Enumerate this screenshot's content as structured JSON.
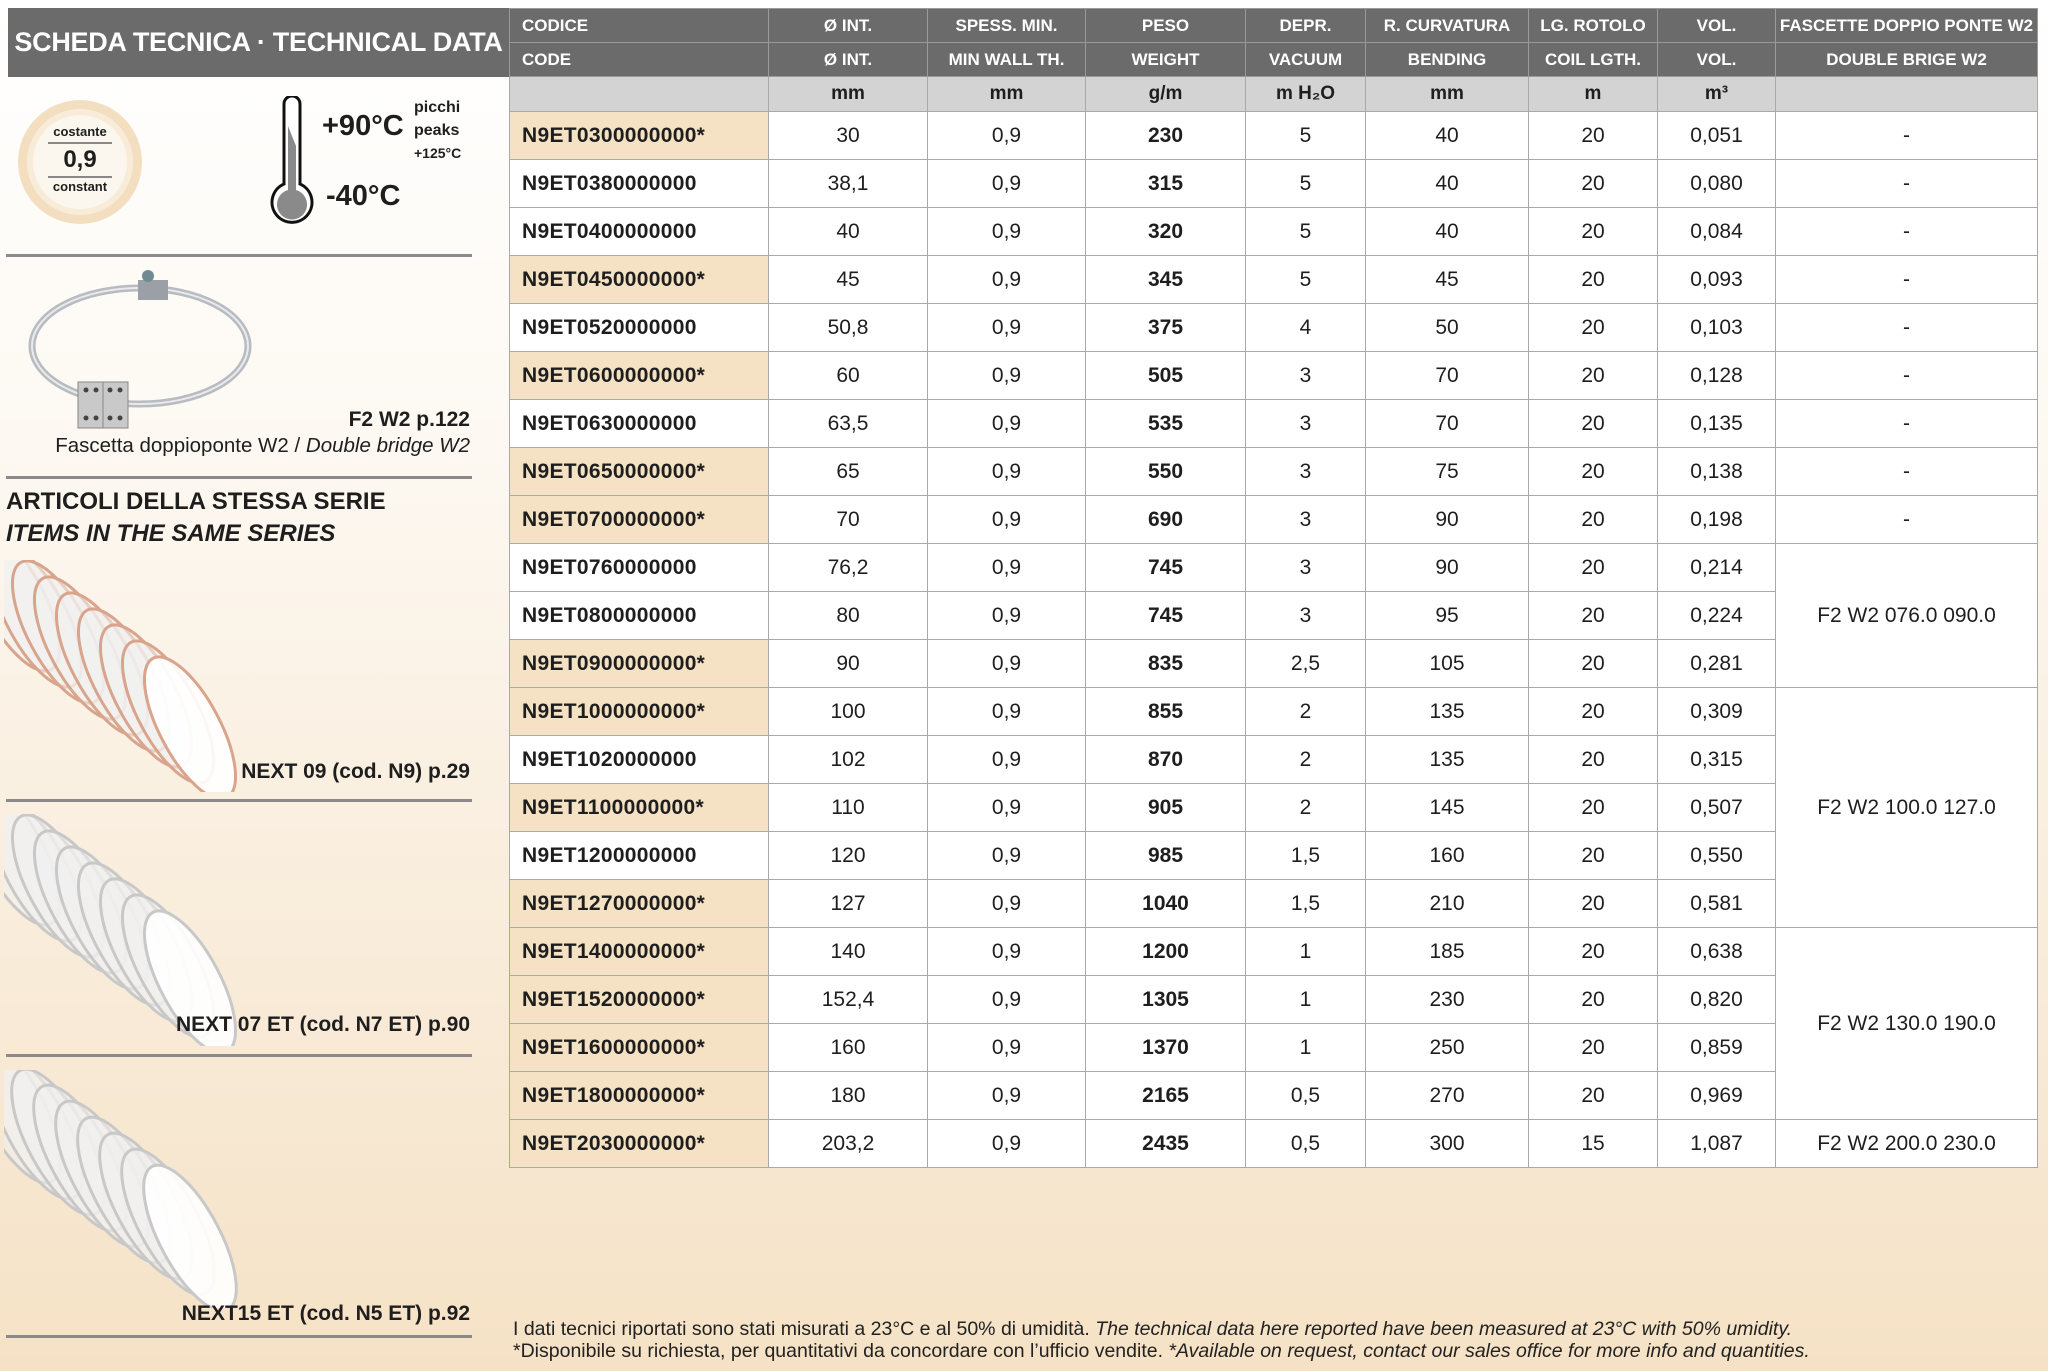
{
  "sidebar": {
    "title": "SCHEDA TECNICA · TECHNICAL DATA",
    "thickness_badge": {
      "top": "costante",
      "value": "0,9",
      "bottom": "constant"
    },
    "temperature": {
      "max": "+90°C",
      "min": "-40°C",
      "peaks_it": "picchi",
      "peaks_en": "peaks",
      "peaks_value": "+125°C"
    },
    "accessory": {
      "code": "F2 W2 p.122",
      "name_it": "Fascetta doppioponte W2",
      "separator": " / ",
      "name_en": "Double bridge W2"
    },
    "series_heading_it": "ARTICOLI DELLA STESSA SERIE",
    "series_heading_en": "ITEMS IN THE SAME SERIES",
    "series_items": [
      {
        "label": "NEXT 09 (cod. N9) p.29",
        "spiral_color": "#d9a48c"
      },
      {
        "label": "NEXT 07 ET (cod. N7 ET) p.90",
        "spiral_color": "#c8c8c8"
      },
      {
        "label": "NEXT15 ET (cod. N5 ET) p.92",
        "spiral_color": "#c8c8c8"
      }
    ]
  },
  "table": {
    "headers_it": [
      "CODICE",
      "Ø INT.",
      "SPESS. MIN.",
      "PESO",
      "DEPR.",
      "R. CURVATURA",
      "LG. ROTOLO",
      "VOL.",
      "FASCETTE DOPPIO PONTE W2"
    ],
    "headers_en": [
      "CODE",
      "Ø INT.",
      "MIN WALL TH.",
      "WEIGHT",
      "VACUUM",
      "BENDING",
      "COIL LGTH.",
      "VOL.",
      "DOUBLE BRIGE W2"
    ],
    "units": [
      "",
      "mm",
      "mm",
      "g/m",
      "m H₂O",
      "mm",
      "m",
      "m³",
      ""
    ],
    "rows": [
      {
        "code": "N9ET0300000000*",
        "dia": "30",
        "wall": "0,9",
        "weight": "230",
        "vacuum": "5",
        "bending": "40",
        "coil": "20",
        "vol": "0,051",
        "on_request": true
      },
      {
        "code": "N9ET0380000000",
        "dia": "38,1",
        "wall": "0,9",
        "weight": "315",
        "vacuum": "5",
        "bending": "40",
        "coil": "20",
        "vol": "0,080",
        "on_request": false
      },
      {
        "code": "N9ET0400000000",
        "dia": "40",
        "wall": "0,9",
        "weight": "320",
        "vacuum": "5",
        "bending": "40",
        "coil": "20",
        "vol": "0,084",
        "on_request": false
      },
      {
        "code": "N9ET0450000000*",
        "dia": "45",
        "wall": "0,9",
        "weight": "345",
        "vacuum": "5",
        "bending": "45",
        "coil": "20",
        "vol": "0,093",
        "on_request": true
      },
      {
        "code": "N9ET0520000000",
        "dia": "50,8",
        "wall": "0,9",
        "weight": "375",
        "vacuum": "4",
        "bending": "50",
        "coil": "20",
        "vol": "0,103",
        "on_request": false
      },
      {
        "code": "N9ET0600000000*",
        "dia": "60",
        "wall": "0,9",
        "weight": "505",
        "vacuum": "3",
        "bending": "70",
        "coil": "20",
        "vol": "0,128",
        "on_request": true
      },
      {
        "code": "N9ET0630000000",
        "dia": "63,5",
        "wall": "0,9",
        "weight": "535",
        "vacuum": "3",
        "bending": "70",
        "coil": "20",
        "vol": "0,135",
        "on_request": false
      },
      {
        "code": "N9ET0650000000*",
        "dia": "65",
        "wall": "0,9",
        "weight": "550",
        "vacuum": "3",
        "bending": "75",
        "coil": "20",
        "vol": "0,138",
        "on_request": true
      },
      {
        "code": "N9ET0700000000*",
        "dia": "70",
        "wall": "0,9",
        "weight": "690",
        "vacuum": "3",
        "bending": "90",
        "coil": "20",
        "vol": "0,198",
        "on_request": true
      },
      {
        "code": "N9ET0760000000",
        "dia": "76,2",
        "wall": "0,9",
        "weight": "745",
        "vacuum": "3",
        "bending": "90",
        "coil": "20",
        "vol": "0,214",
        "on_request": false
      },
      {
        "code": "N9ET0800000000",
        "dia": "80",
        "wall": "0,9",
        "weight": "745",
        "vacuum": "3",
        "bending": "95",
        "coil": "20",
        "vol": "0,224",
        "on_request": false
      },
      {
        "code": "N9ET0900000000*",
        "dia": "90",
        "wall": "0,9",
        "weight": "835",
        "vacuum": "2,5",
        "bending": "105",
        "coil": "20",
        "vol": "0,281",
        "on_request": true
      },
      {
        "code": "N9ET1000000000*",
        "dia": "100",
        "wall": "0,9",
        "weight": "855",
        "vacuum": "2",
        "bending": "135",
        "coil": "20",
        "vol": "0,309",
        "on_request": true
      },
      {
        "code": "N9ET1020000000",
        "dia": "102",
        "wall": "0,9",
        "weight": "870",
        "vacuum": "2",
        "bending": "135",
        "coil": "20",
        "vol": "0,315",
        "on_request": false
      },
      {
        "code": "N9ET1100000000*",
        "dia": "110",
        "wall": "0,9",
        "weight": "905",
        "vacuum": "2",
        "bending": "145",
        "coil": "20",
        "vol": "0,507",
        "on_request": true
      },
      {
        "code": "N9ET1200000000",
        "dia": "120",
        "wall": "0,9",
        "weight": "985",
        "vacuum": "1,5",
        "bending": "160",
        "coil": "20",
        "vol": "0,550",
        "on_request": false
      },
      {
        "code": "N9ET1270000000*",
        "dia": "127",
        "wall": "0,9",
        "weight": "1040",
        "vacuum": "1,5",
        "bending": "210",
        "coil": "20",
        "vol": "0,581",
        "on_request": true
      },
      {
        "code": "N9ET1400000000*",
        "dia": "140",
        "wall": "0,9",
        "weight": "1200",
        "vacuum": "1",
        "bending": "185",
        "coil": "20",
        "vol": "0,638",
        "on_request": true
      },
      {
        "code": "N9ET1520000000*",
        "dia": "152,4",
        "wall": "0,9",
        "weight": "1305",
        "vacuum": "1",
        "bending": "230",
        "coil": "20",
        "vol": "0,820",
        "on_request": true
      },
      {
        "code": "N9ET1600000000*",
        "dia": "160",
        "wall": "0,9",
        "weight": "1370",
        "vacuum": "1",
        "bending": "250",
        "coil": "20",
        "vol": "0,859",
        "on_request": true
      },
      {
        "code": "N9ET1800000000*",
        "dia": "180",
        "wall": "0,9",
        "weight": "2165",
        "vacuum": "0,5",
        "bending": "270",
        "coil": "20",
        "vol": "0,969",
        "on_request": true
      },
      {
        "code": "N9ET2030000000*",
        "dia": "203,2",
        "wall": "0,9",
        "weight": "2435",
        "vacuum": "0,5",
        "bending": "300",
        "coil": "15",
        "vol": "1,087",
        "on_request": true
      }
    ],
    "clamp_groups": [
      {
        "label": "-",
        "rows": 1
      },
      {
        "label": "-",
        "rows": 1
      },
      {
        "label": "-",
        "rows": 1
      },
      {
        "label": "-",
        "rows": 1
      },
      {
        "label": "-",
        "rows": 1
      },
      {
        "label": "-",
        "rows": 1
      },
      {
        "label": "-",
        "rows": 1
      },
      {
        "label": "-",
        "rows": 1
      },
      {
        "label": "-",
        "rows": 1
      },
      {
        "label": "F2 W2 076.0 090.0",
        "rows": 3
      },
      {
        "label": "F2 W2 100.0 127.0",
        "rows": 5
      },
      {
        "label": "F2 W2 130.0 190.0",
        "rows": 4
      },
      {
        "label": "F2 W2 200.0 230.0",
        "rows": 1
      }
    ],
    "highlight_color": "#f5e1c3",
    "header_color": "#6b6b6b"
  },
  "footnote": {
    "line1_it": "I dati tecnici riportati sono stati misurati a 23°C e al 50% di umidità. ",
    "line1_en": "The technical data here reported have been measured at 23°C with 50% umidity.",
    "line2_it": "*Disponibile su richiesta, per quantitativi da concordare con l’ufficio vendite. ",
    "line2_en": "*Available on request, contact our sales office for more info and quantities."
  }
}
